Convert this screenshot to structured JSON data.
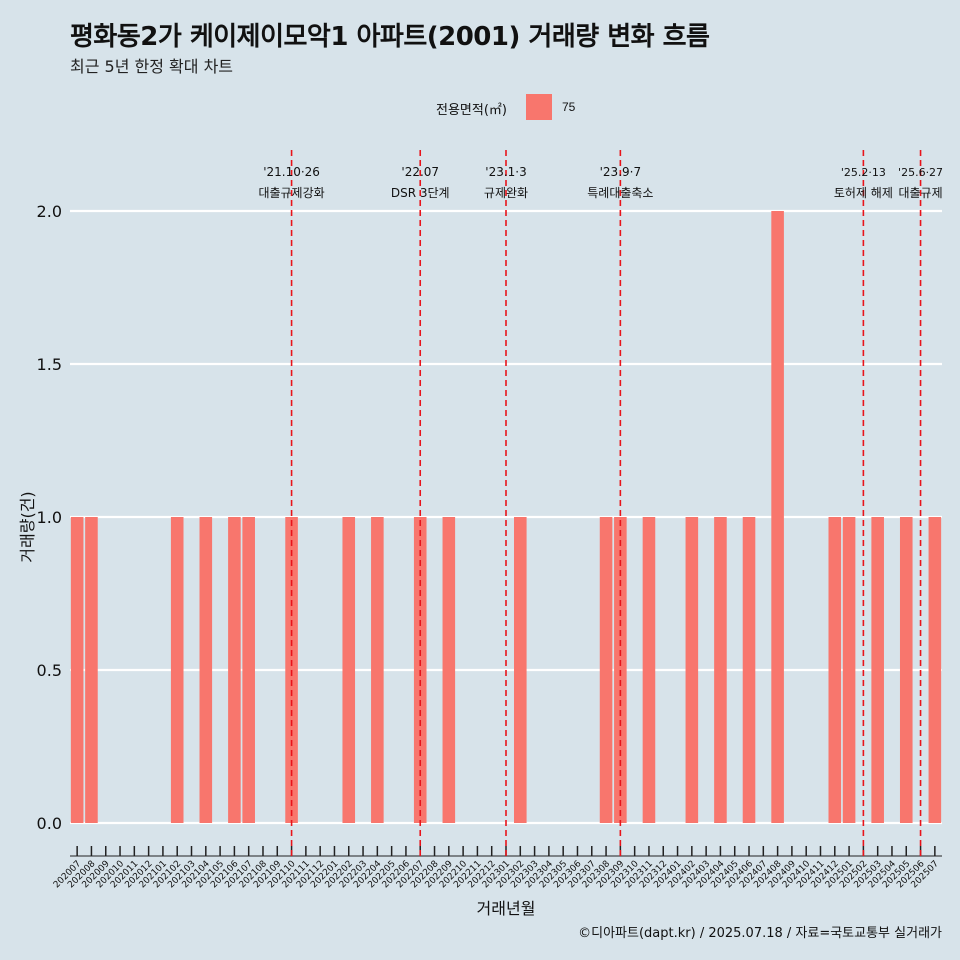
{
  "title": "평화동2가 케이제이모악1 아파트(2001) 거래량 변화 흐름",
  "subtitle": "최근 5년 한정 확대 차트",
  "legend": {
    "title": "전용면적(㎡)",
    "label": "75"
  },
  "footer": "©디아파트(dapt.kr) / 2025.07.18 / 자료=국토교통부 실거래가",
  "colors": {
    "bar": "#f8766d",
    "background": "#d7e3ea",
    "grid": "#ffffff",
    "event_line": "#e8141b"
  },
  "chart_data": {
    "type": "bar",
    "title": "평화동2가 케이제이모악1 아파트(2001) 거래량 변화 흐름",
    "xlabel": "거래년월",
    "ylabel": "거래량(건)",
    "ylim": [
      0,
      2
    ],
    "y_ticks": [
      "0.0",
      "0.5",
      "1.0",
      "1.5",
      "2.0"
    ],
    "grid": true,
    "legend_position": "top",
    "categories": [
      "202007",
      "202008",
      "202009",
      "202010",
      "202011",
      "202012",
      "202101",
      "202102",
      "202103",
      "202104",
      "202105",
      "202106",
      "202107",
      "202108",
      "202109",
      "202110",
      "202111",
      "202112",
      "202201",
      "202202",
      "202203",
      "202204",
      "202205",
      "202206",
      "202207",
      "202208",
      "202209",
      "202210",
      "202211",
      "202212",
      "202301",
      "202302",
      "202303",
      "202304",
      "202305",
      "202306",
      "202307",
      "202308",
      "202309",
      "202310",
      "202311",
      "202312",
      "202401",
      "202402",
      "202403",
      "202404",
      "202405",
      "202406",
      "202407",
      "202408",
      "202409",
      "202410",
      "202411",
      "202412",
      "202501",
      "202502",
      "202503",
      "202504",
      "202505",
      "202506",
      "202507"
    ],
    "series": [
      {
        "name": "75",
        "values": [
          1,
          1,
          0,
          0,
          0,
          0,
          0,
          1,
          0,
          1,
          0,
          1,
          1,
          0,
          0,
          1,
          0,
          0,
          0,
          1,
          0,
          1,
          0,
          0,
          1,
          0,
          1,
          0,
          0,
          0,
          0,
          1,
          0,
          0,
          0,
          0,
          0,
          1,
          1,
          0,
          1,
          0,
          0,
          1,
          0,
          1,
          0,
          1,
          0,
          2,
          0,
          0,
          0,
          1,
          1,
          0,
          1,
          0,
          1,
          0,
          1
        ]
      }
    ],
    "annotations": [
      {
        "x": "202110",
        "date": "'21.10·26",
        "text": "대출규제강화"
      },
      {
        "x": "202207",
        "date": "'22.07",
        "text": "DSR 3단계"
      },
      {
        "x": "202301",
        "date": "'23.1·3",
        "text": "규제완화"
      },
      {
        "x": "202309",
        "date": "'23.9·7",
        "text": "특례대출축소"
      },
      {
        "x": "202502",
        "date": "'25.2·13",
        "text": "토허제 해제"
      },
      {
        "x": "202506",
        "date": "'25.6·27",
        "text": "대출규제"
      }
    ]
  }
}
